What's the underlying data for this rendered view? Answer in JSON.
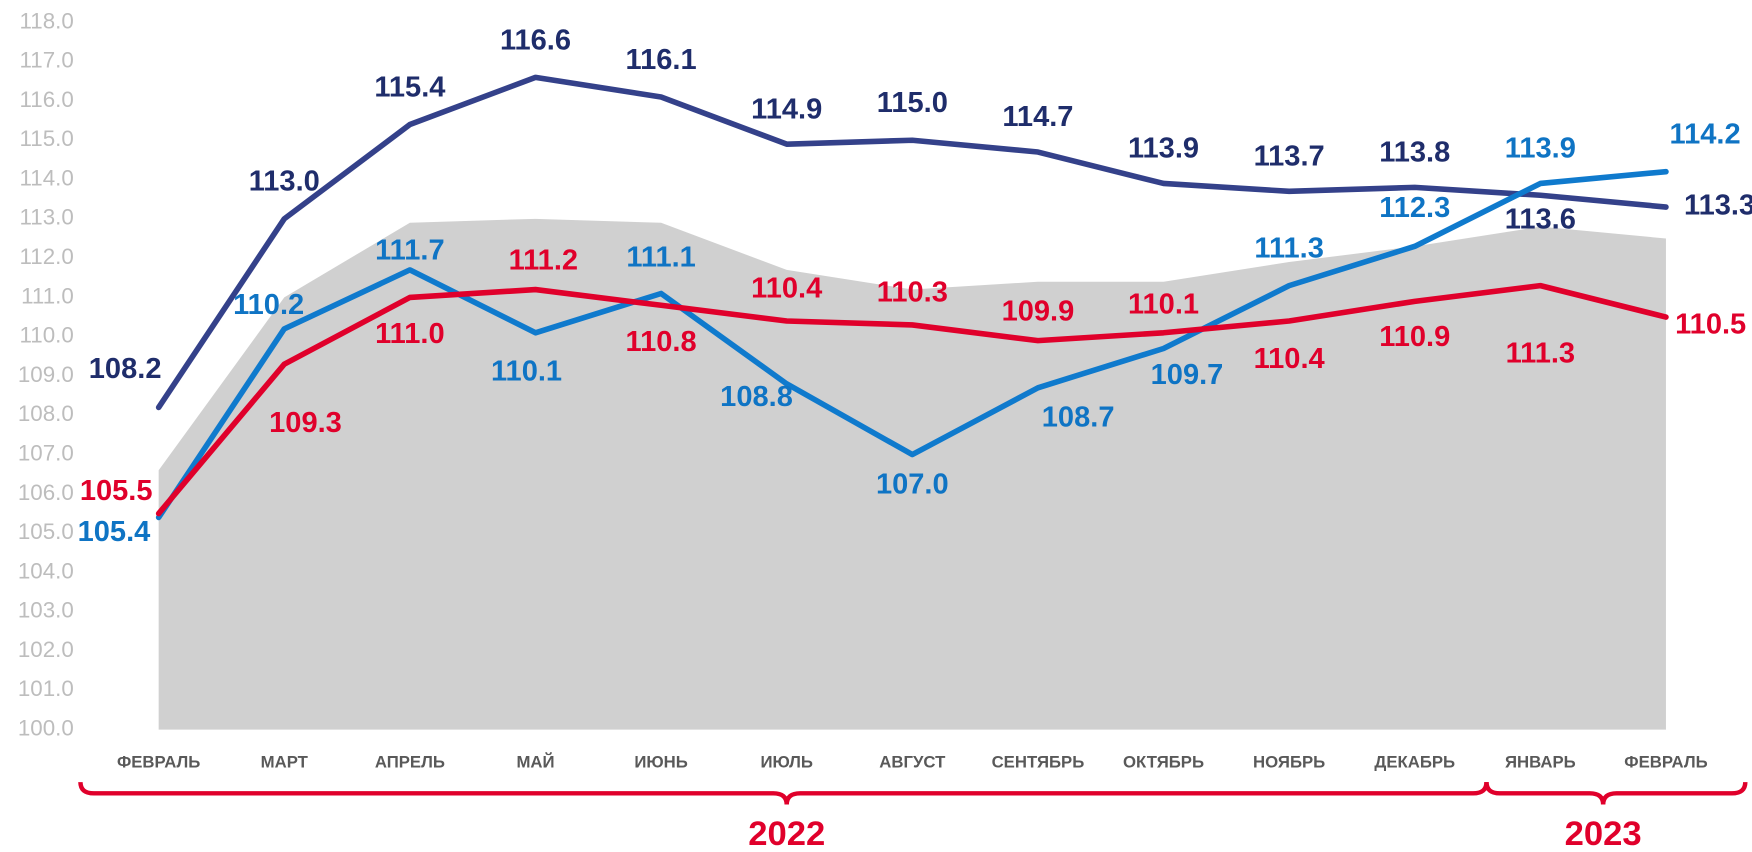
{
  "chart_data": {
    "type": "line",
    "categories": [
      "ФЕВРАЛЬ",
      "МАРТ",
      "АПРЕЛЬ",
      "МАЙ",
      "ИЮНЬ",
      "ИЮЛЬ",
      "АВГУСТ",
      "СЕНТЯБРЬ",
      "ОКТЯБРЬ",
      "НОЯБРЬ",
      "ДЕКАБРЬ",
      "ЯНВАРЬ",
      "ФЕВРАЛЬ"
    ],
    "area": {
      "color": "#d0d0d0",
      "values": [
        106.6,
        111.0,
        112.9,
        113.0,
        112.9,
        111.7,
        111.2,
        111.4,
        111.4,
        111.9,
        112.3,
        112.8,
        112.5
      ]
    },
    "series": [
      {
        "color": "#34418a",
        "label_color": "#1f2d6b",
        "values": [
          108.2,
          113.0,
          115.4,
          116.6,
          116.1,
          114.9,
          115.0,
          114.7,
          113.9,
          113.7,
          113.8,
          113.6,
          113.3
        ],
        "value_labels": [
          "108.2",
          "113.0",
          "115.4",
          "116.6",
          "116.1",
          "114.9",
          "115.0",
          "114.7",
          "113.9",
          "113.7",
          "113.8",
          "113.6",
          "113.3"
        ]
      },
      {
        "color": "#0f7acd",
        "label_color": "#0f74c4",
        "values": [
          105.4,
          110.2,
          111.7,
          110.1,
          111.1,
          108.8,
          107.0,
          108.7,
          109.7,
          111.3,
          112.3,
          113.9,
          114.2
        ],
        "value_labels": [
          "105.4",
          "110.2",
          "111.7",
          "110.1",
          "111.1",
          "108.8",
          "107.0",
          "108.7",
          "109.7",
          "111.3",
          "112.3",
          "113.9",
          "114.2"
        ]
      },
      {
        "color": "#e0002b",
        "label_color": "#e0002b",
        "values": [
          105.5,
          109.3,
          111.0,
          111.2,
          110.8,
          110.4,
          110.3,
          109.9,
          110.1,
          110.4,
          110.9,
          111.3,
          110.5
        ],
        "value_labels": [
          "105.5",
          "109.3",
          "111.0",
          "111.2",
          "110.8",
          "110.4",
          "110.3",
          "109.9",
          "110.1",
          "110.4",
          "110.9",
          "111.3",
          "110.5"
        ]
      }
    ],
    "groups": [
      {
        "label": "2022",
        "span": 11
      },
      {
        "label": "2023",
        "span": 2
      }
    ],
    "ylim": [
      100,
      118
    ],
    "yticks": [
      {
        "value": 100,
        "label": "100.0"
      },
      {
        "value": 101,
        "label": "101.0"
      },
      {
        "value": 102,
        "label": "102.0"
      },
      {
        "value": 103,
        "label": "103.0"
      },
      {
        "value": 104,
        "label": "104.0"
      },
      {
        "value": 105,
        "label": "105.0"
      },
      {
        "value": 106,
        "label": "106.0"
      },
      {
        "value": 107,
        "label": "107.0"
      },
      {
        "value": 108,
        "label": "108.0"
      },
      {
        "value": 109,
        "label": "109.0"
      },
      {
        "value": 110,
        "label": "110.0"
      },
      {
        "value": 111,
        "label": "111.0"
      },
      {
        "value": 112,
        "label": "112.0"
      },
      {
        "value": 113,
        "label": "113.0"
      },
      {
        "value": 114,
        "label": "114.0"
      },
      {
        "value": 115,
        "label": "115.0"
      },
      {
        "value": 116,
        "label": "116.0"
      },
      {
        "value": 117,
        "label": "117.0"
      },
      {
        "value": 118,
        "label": "118.0"
      }
    ],
    "grid": false
  }
}
